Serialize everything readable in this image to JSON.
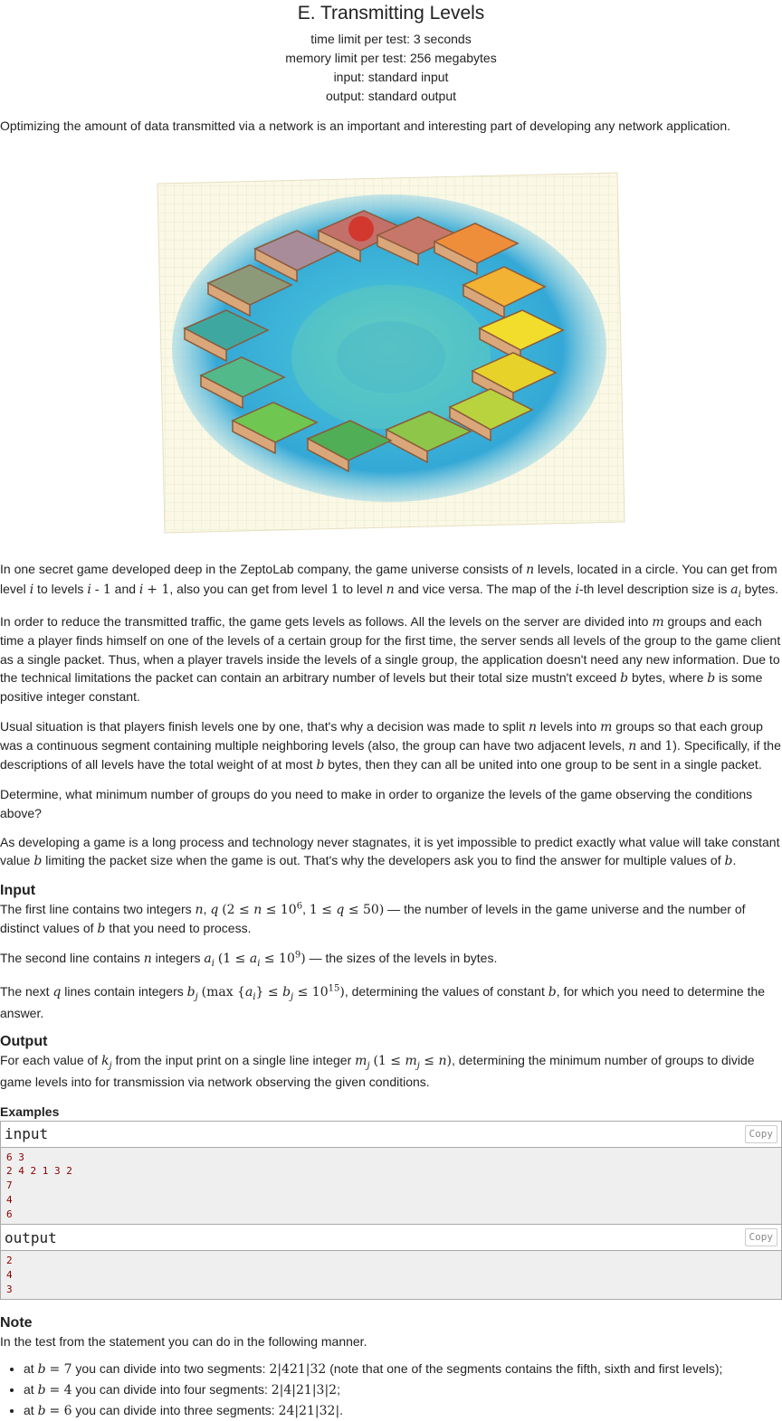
{
  "title": "E. Transmitting Levels",
  "limits": {
    "time": "time limit per test: 3 seconds",
    "memory": "memory limit per test: 256 megabytes",
    "input": "input: standard input",
    "output": "output: standard output"
  },
  "intro": "Optimizing the amount of data transmitted via a network is an important and interesting part of developing any network application.",
  "illustration": {
    "icon": "game-levels-ring-illustration"
  },
  "statement": {
    "p5": "Determine, what minimum number of groups do you need to make in order to organize the levels of the game observing the conditions above?"
  },
  "sections": {
    "input": "Input",
    "output": "Output",
    "examples": "Examples",
    "note": "Note"
  },
  "examples": {
    "input_label": "input",
    "output_label": "output",
    "copy_label": "Copy",
    "input_text": "6 3\n2 4 2 1 3 2\n7\n4\n6",
    "output_text": "2\n4\n3"
  },
  "note": {
    "intro": "In the test from the statement you can do in the following manner."
  }
}
